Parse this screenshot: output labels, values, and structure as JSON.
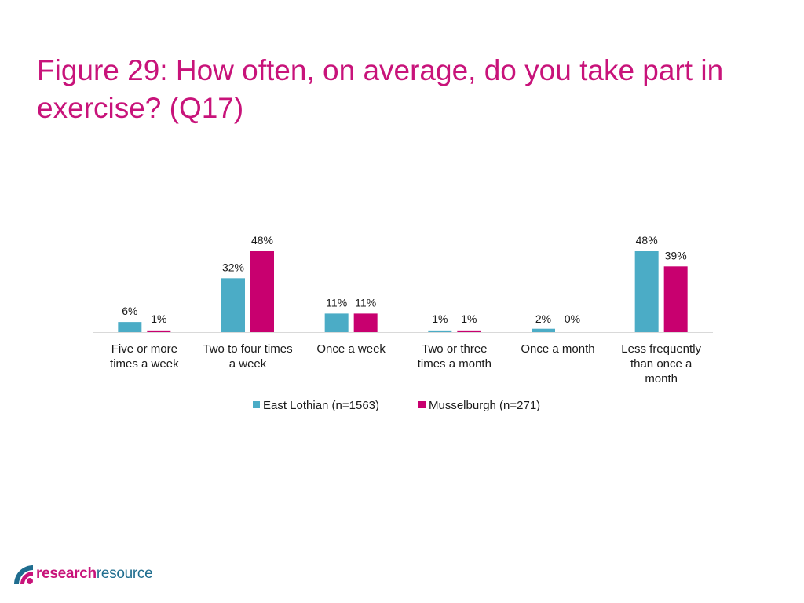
{
  "slide": {
    "title": "Figure 29: How often, on average, do you take part in exercise? (Q17)"
  },
  "logo": {
    "bold_text": "research",
    "rest_text": "resource"
  },
  "colors": {
    "title": "#c8137a",
    "east_lothian": "#4bacc6",
    "musselburgh": "#c8006f",
    "axis": "#d9d9d9"
  },
  "chart_data": {
    "type": "bar",
    "categories": [
      [
        "Five or more",
        "times a week"
      ],
      [
        "Two to four times",
        "a week"
      ],
      [
        "Once a week"
      ],
      [
        "Two or three",
        "times a month"
      ],
      [
        "Once a month"
      ],
      [
        "Less frequently",
        "than once a",
        "month"
      ]
    ],
    "series": [
      {
        "name": "East Lothian (n=1563)",
        "values": [
          6,
          32,
          11,
          1,
          2,
          48
        ],
        "labels": [
          "6%",
          "32%",
          "11%",
          "1%",
          "2%",
          "48%"
        ],
        "color": "#4bacc6"
      },
      {
        "name": "Musselburgh (n=271)",
        "values": [
          1,
          48,
          11,
          1,
          0,
          39
        ],
        "labels": [
          "1%",
          "48%",
          "11%",
          "1%",
          "0%",
          "39%"
        ],
        "color": "#c8006f"
      }
    ],
    "ylim": [
      0,
      48
    ],
    "grid": false,
    "legend": "bottom"
  }
}
